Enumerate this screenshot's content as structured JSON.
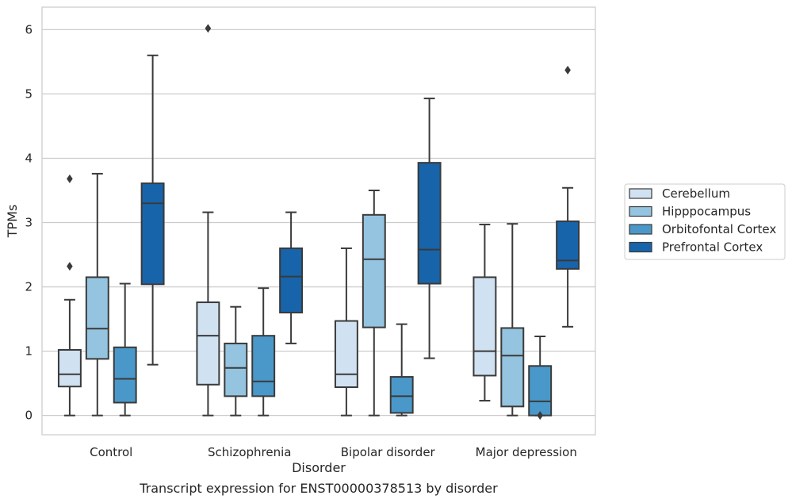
{
  "chart_data": {
    "type": "box",
    "title": "Transcript expression for ENST00000378513 by disorder",
    "xlabel": "Disorder",
    "ylabel": "TPMs",
    "ylim": [
      -0.3,
      6.35
    ],
    "yticks": [
      0,
      1,
      2,
      3,
      4,
      5,
      6
    ],
    "grid": "horizontal",
    "legend_position": "right",
    "categories": [
      "Control",
      "Schizophrenia",
      "Bipolar disorder",
      "Major depression"
    ],
    "series": [
      {
        "name": "Cerebellum",
        "color": "#d0e1f2",
        "boxes": [
          {
            "whislo": 0.0,
            "q1": 0.45,
            "med": 0.64,
            "q3": 1.02,
            "whishi": 1.8,
            "fliers": [
              2.32,
              3.68
            ]
          },
          {
            "whislo": 0.0,
            "q1": 0.48,
            "med": 1.24,
            "q3": 1.76,
            "whishi": 3.16,
            "fliers": [
              6.02
            ]
          },
          {
            "whislo": 0.0,
            "q1": 0.44,
            "med": 0.64,
            "q3": 1.47,
            "whishi": 2.6,
            "fliers": []
          },
          {
            "whislo": 0.23,
            "q1": 0.62,
            "med": 1.0,
            "q3": 2.15,
            "whishi": 2.97,
            "fliers": []
          }
        ]
      },
      {
        "name": "Hipppocampus",
        "color": "#94c4df",
        "boxes": [
          {
            "whislo": 0.0,
            "q1": 0.88,
            "med": 1.35,
            "q3": 2.15,
            "whishi": 3.76,
            "fliers": []
          },
          {
            "whislo": 0.0,
            "q1": 0.3,
            "med": 0.74,
            "q3": 1.12,
            "whishi": 1.69,
            "fliers": []
          },
          {
            "whislo": 0.0,
            "q1": 1.37,
            "med": 2.43,
            "q3": 3.12,
            "whishi": 3.5,
            "fliers": []
          },
          {
            "whislo": 0.0,
            "q1": 0.14,
            "med": 0.93,
            "q3": 1.36,
            "whishi": 2.98,
            "fliers": []
          }
        ]
      },
      {
        "name": "Orbitofontal Cortex",
        "color": "#4a98c9",
        "boxes": [
          {
            "whislo": 0.0,
            "q1": 0.2,
            "med": 0.57,
            "q3": 1.06,
            "whishi": 2.05,
            "fliers": []
          },
          {
            "whislo": 0.0,
            "q1": 0.3,
            "med": 0.53,
            "q3": 1.24,
            "whishi": 1.98,
            "fliers": []
          },
          {
            "whislo": 0.0,
            "q1": 0.04,
            "med": 0.3,
            "q3": 0.6,
            "whishi": 1.42,
            "fliers": []
          },
          {
            "whislo": 0.0,
            "q1": 0.0,
            "med": 0.22,
            "q3": 0.77,
            "whishi": 1.23,
            "fliers": [
              0.0
            ]
          }
        ]
      },
      {
        "name": "Prefrontal Cortex",
        "color": "#1764ab",
        "boxes": [
          {
            "whislo": 0.79,
            "q1": 2.04,
            "med": 3.3,
            "q3": 3.61,
            "whishi": 5.6,
            "fliers": []
          },
          {
            "whislo": 1.12,
            "q1": 1.6,
            "med": 2.16,
            "q3": 2.6,
            "whishi": 3.16,
            "fliers": []
          },
          {
            "whislo": 0.89,
            "q1": 2.05,
            "med": 2.58,
            "q3": 3.93,
            "whishi": 4.93,
            "fliers": []
          },
          {
            "whislo": 1.38,
            "q1": 2.28,
            "med": 2.41,
            "q3": 3.02,
            "whishi": 3.54,
            "fliers": [
              5.37
            ]
          }
        ]
      }
    ]
  }
}
